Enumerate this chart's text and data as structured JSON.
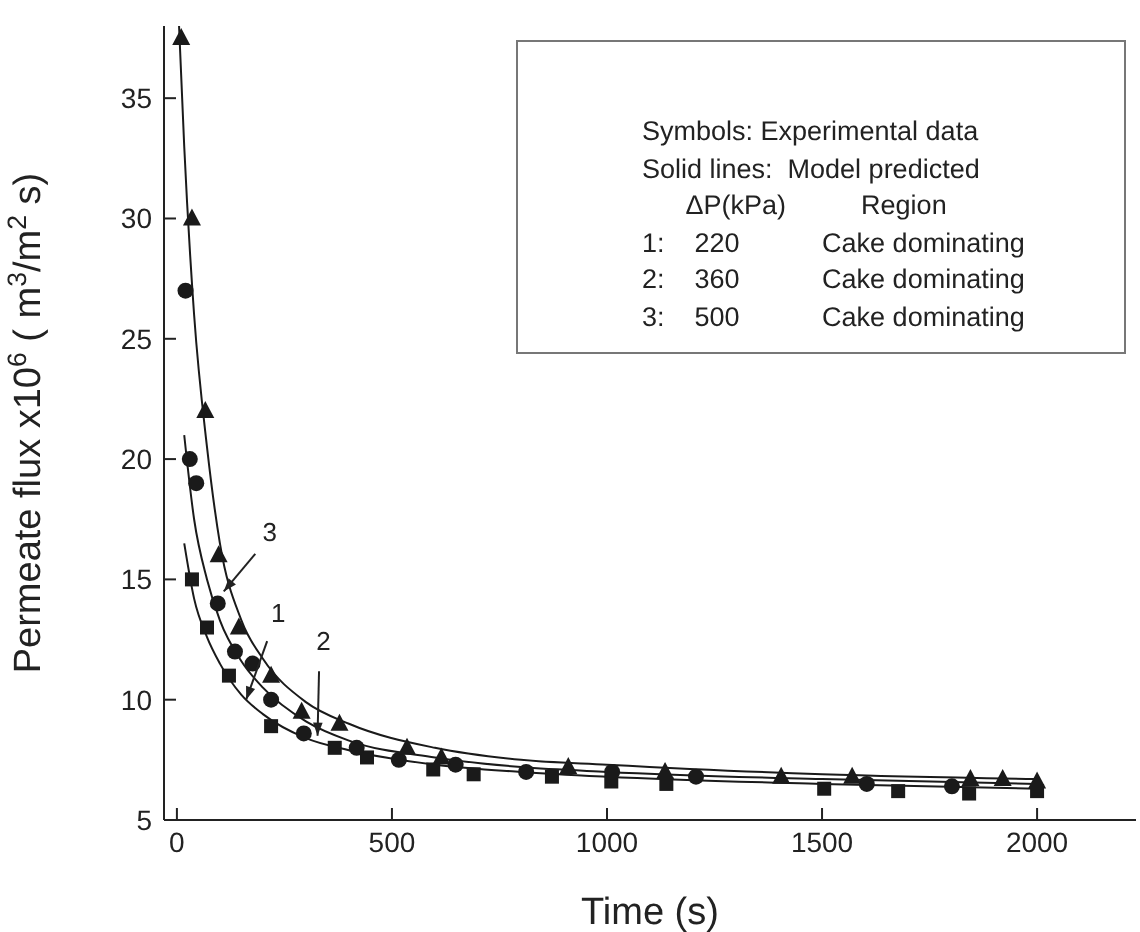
{
  "chart_data": {
    "type": "scatter",
    "xlabel": "Time (s)",
    "ylabel": "Permeate flux x10$^{6}$ ( m$^{3}$/m$^{2}$ s)",
    "xlim": [
      -30,
      2230
    ],
    "ylim": [
      5,
      38
    ],
    "xticks": [
      0,
      500,
      1000,
      1500,
      2000
    ],
    "yticks": [
      5,
      10,
      15,
      20,
      25,
      30,
      35
    ],
    "series": [
      {
        "marker": "square",
        "color": "#1a1a1a",
        "x": [
          35,
          70,
          121,
          219,
          367,
          442,
          596,
          690,
          872,
          1010,
          1138,
          1505,
          1677,
          1842,
          2000
        ],
        "values": [
          15,
          13,
          11,
          8.9,
          8.0,
          7.6,
          7.1,
          6.9,
          6.8,
          6.6,
          6.5,
          6.3,
          6.2,
          6.1,
          6.2
        ]
      },
      {
        "marker": "circle",
        "color": "#1a1a1a",
        "x": [
          20,
          30,
          45,
          95,
          135,
          176,
          219,
          295,
          418,
          516,
          648,
          812,
          1012,
          1207,
          1604,
          1802
        ],
        "values": [
          27,
          20,
          19,
          14,
          12,
          11.5,
          10,
          8.6,
          8.0,
          7.5,
          7.3,
          7.0,
          7.0,
          6.8,
          6.5,
          6.4
        ]
      },
      {
        "marker": "triangle",
        "color": "#1a1a1a",
        "x": [
          10,
          35,
          66,
          97,
          144,
          219,
          290,
          378,
          535,
          615,
          910,
          1135,
          1405,
          1570,
          1845,
          1920,
          2000
        ],
        "values": [
          37.5,
          30,
          22,
          16,
          13,
          11,
          9.5,
          9,
          8,
          7.6,
          7.2,
          7.0,
          6.8,
          6.8,
          6.7,
          6.7,
          6.6
        ]
      },
      {
        "type": "line",
        "marker": "none",
        "line_style": "solid",
        "color": "#1a1a1a",
        "x": [
          17,
          40,
          70,
          100,
          150,
          200,
          300,
          400,
          600,
          800,
          1000,
          1500,
          2000
        ],
        "values": [
          16.5,
          14.2,
          12.6,
          11.5,
          10.2,
          9.4,
          8.4,
          7.9,
          7.3,
          7.0,
          6.8,
          6.5,
          6.3
        ]
      },
      {
        "type": "line",
        "marker": "none",
        "line_style": "solid",
        "color": "#1a1a1a",
        "x": [
          17,
          40,
          70,
          100,
          150,
          200,
          300,
          400,
          600,
          800,
          1000,
          1500,
          2000
        ],
        "values": [
          21,
          17.5,
          15,
          13.3,
          11.6,
          10.5,
          9.1,
          8.3,
          7.6,
          7.2,
          7.0,
          6.7,
          6.5
        ]
      },
      {
        "type": "line",
        "marker": "none",
        "line_style": "solid",
        "color": "#1a1a1a",
        "x": [
          5,
          17,
          40,
          70,
          100,
          150,
          200,
          300,
          400,
          600,
          800,
          1000,
          1500,
          2000
        ],
        "values": [
          38,
          33,
          26,
          20.5,
          16.5,
          13.3,
          11.7,
          9.9,
          9.0,
          8.0,
          7.5,
          7.3,
          6.9,
          6.7
        ]
      }
    ],
    "annotations": [
      "Symbols: Experimental data",
      "Solid lines:  Model predicted",
      "      ΔP(kPa)          Region",
      "1:    220           Cake dominating",
      "2:    360           Cake dominating",
      "3:    500           Cake dominating",
      {
        "text": "3",
        "x": 109,
        "y": 14.5
      },
      {
        "text": "1",
        "x": 161,
        "y": 10
      },
      {
        "text": "2",
        "x": 327,
        "y": 8.5
      }
    ]
  }
}
